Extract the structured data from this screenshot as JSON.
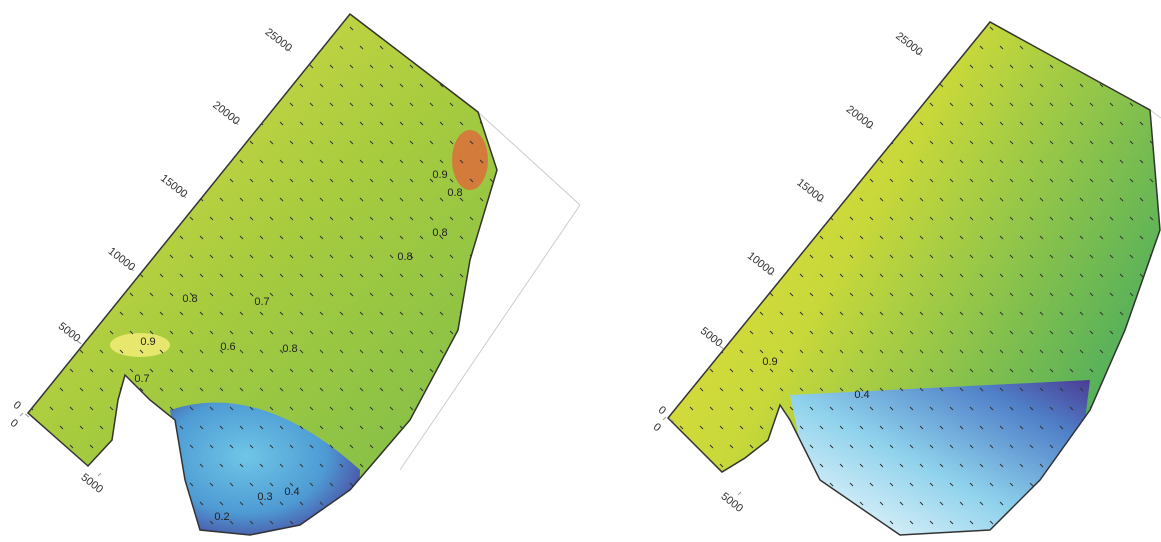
{
  "chart_data": [
    {
      "type": "contour",
      "ylim": [
        0,
        26000
      ],
      "yticks": [
        0,
        5000,
        10000,
        15000,
        20000,
        25000
      ],
      "xlim": [
        0,
        10000
      ],
      "xticks": [
        0,
        5000
      ],
      "contour_labels": [
        0.9,
        0.8,
        0.8,
        0.8,
        0.8,
        0.7,
        0.6,
        0.8,
        0.9,
        0.7,
        0.4,
        0.3,
        0.2
      ]
    },
    {
      "type": "contour",
      "ylim": [
        0,
        26000
      ],
      "yticks": [
        0,
        5000,
        10000,
        15000,
        20000,
        25000
      ],
      "xlim": [
        0,
        10000
      ],
      "xticks": [
        0,
        5000
      ],
      "contour_labels": [
        0.9,
        0.4
      ]
    }
  ]
}
